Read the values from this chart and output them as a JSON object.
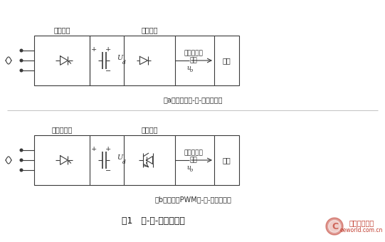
{
  "bg_color": "#ffffff",
  "title_text": "图1   交-直-交变频电路",
  "subtitle_a": "（a）普通型交-直-交变频电路",
  "subtitle_b": "（b）电压型PWM交-直-交变频电路",
  "label_a_rect1": "可控整流",
  "label_a_rect2": "逆变电路",
  "label_a_ac_top": "单相或三相",
  "label_a_ac_mid": "交流",
  "label_a_ac_bot": "u",
  "label_a_ac_bot_sub": "o",
  "label_a_load": "负载",
  "label_b_rect1": "不可控整流",
  "label_b_rect2": "逆变电路",
  "label_b_ac_top": "单相或三相",
  "label_b_ac_mid": "交流",
  "label_b_ac_bot": "u",
  "label_b_ac_bot_sub": "o",
  "label_b_load": "负载",
  "ud_label": "U",
  "ud_sub": "d",
  "wm_text1": "电子工程世界",
  "wm_text2": "eeworld.com.cn",
  "line_color": "#3a3a3a",
  "wm_color": "#c0392b"
}
